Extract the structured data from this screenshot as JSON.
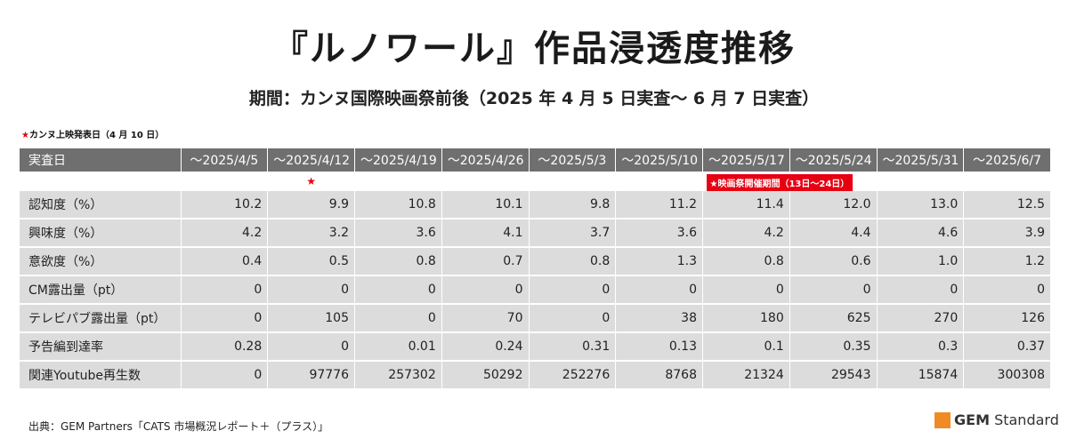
{
  "title": "『ルノワール』作品浸透度推移",
  "subtitle": "期間：カンヌ国際映画祭前後（2025 年 4 月 5 日実査～ 6 月 7 日実査）",
  "note_top": {
    "star": "★",
    "text": "カンヌ上映発表日（4 月 10 日）"
  },
  "table": {
    "header_label": "実査日",
    "dates": [
      "～2025/4/5",
      "～2025/4/12",
      "～2025/4/19",
      "～2025/4/26",
      "～2025/5/3",
      "～2025/5/10",
      "～2025/5/17",
      "～2025/5/24",
      "～2025/5/31",
      "～2025/6/7"
    ],
    "markers": {
      "star_column": 1,
      "star": "★",
      "festival_column": 6,
      "festival_label": "★映画祭開催期間（13日～24日）"
    },
    "rows": [
      {
        "label": "認知度（%）",
        "values": [
          "10.2",
          "9.9",
          "10.8",
          "10.1",
          "9.8",
          "11.2",
          "11.4",
          "12.0",
          "13.0",
          "12.5"
        ]
      },
      {
        "label": "興味度（%）",
        "values": [
          "4.2",
          "3.2",
          "3.6",
          "4.1",
          "3.7",
          "3.6",
          "4.2",
          "4.4",
          "4.6",
          "3.9"
        ]
      },
      {
        "label": "意欲度（%）",
        "values": [
          "0.4",
          "0.5",
          "0.8",
          "0.7",
          "0.8",
          "1.3",
          "0.8",
          "0.6",
          "1.0",
          "1.2"
        ]
      },
      {
        "label": "CM露出量（pt）",
        "values": [
          "0",
          "0",
          "0",
          "0",
          "0",
          "0",
          "0",
          "0",
          "0",
          "0"
        ]
      },
      {
        "label": "テレビパブ露出量（pt）",
        "values": [
          "0",
          "105",
          "0",
          "70",
          "0",
          "38",
          "180",
          "625",
          "270",
          "126"
        ]
      },
      {
        "label": "予告編到達率",
        "values": [
          "0.28",
          "0",
          "0.01",
          "0.24",
          "0.31",
          "0.13",
          "0.1",
          "0.35",
          "0.3",
          "0.37"
        ]
      },
      {
        "label": "関連Youtube再生数",
        "values": [
          "0",
          "97776",
          "257302",
          "50292",
          "252276",
          "8768",
          "21324",
          "29543",
          "15874",
          "300308"
        ]
      }
    ]
  },
  "source": "出典：GEM Partners「CATS 市場概況レポート＋（プラス）」",
  "logo": {
    "bold": "GEM",
    "regular": " Standard"
  },
  "colors": {
    "header_bg": "#6f6f6f",
    "row_bg": "#dcdcdc",
    "accent_red": "#e60012",
    "logo_orange": "#f08a24"
  }
}
